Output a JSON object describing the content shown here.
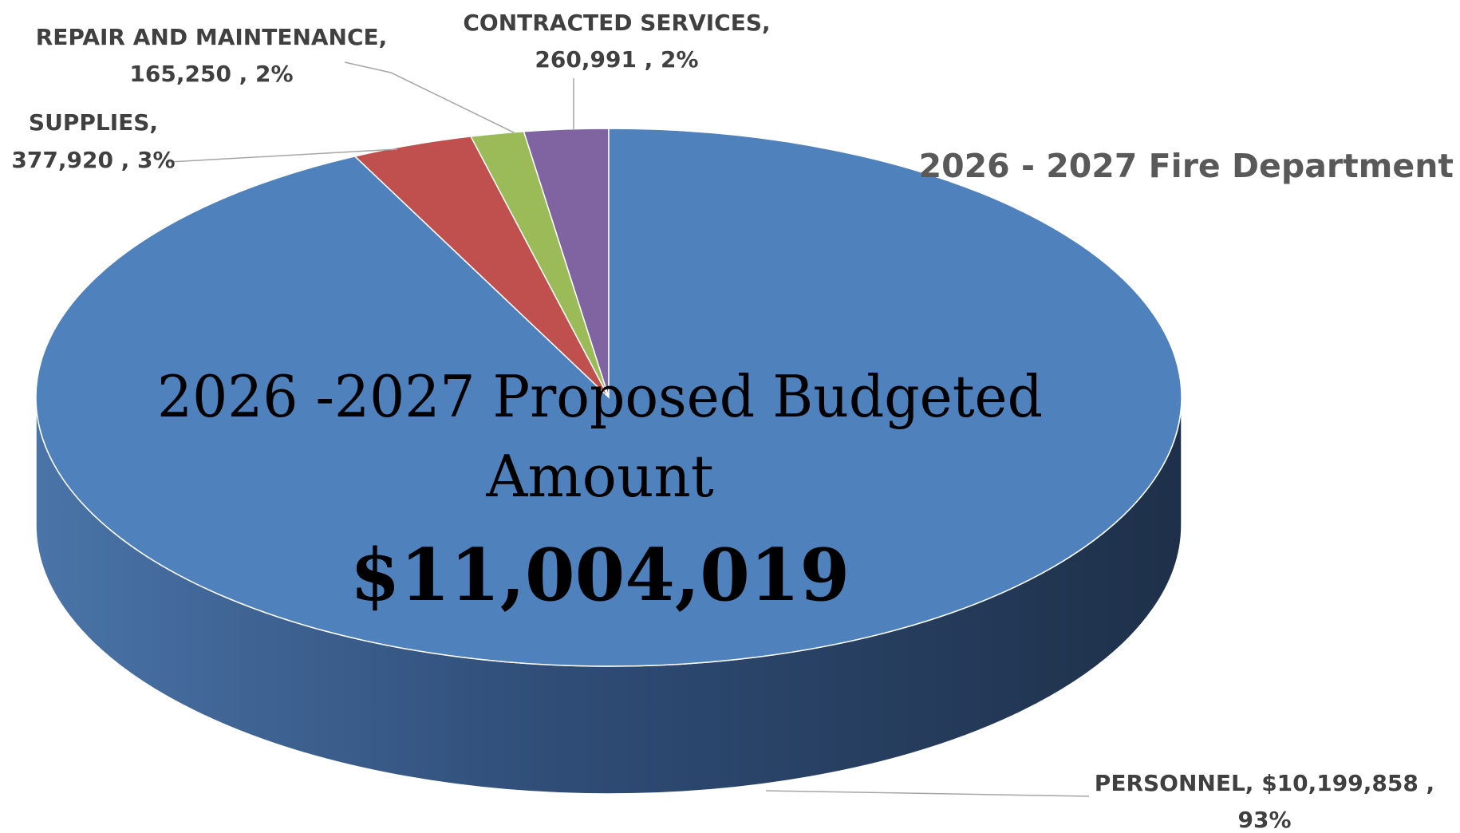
{
  "chart_data": {
    "type": "pie",
    "style": "3d",
    "title": "2026 - 2027 Fire Department",
    "center_line_1": "2026 -2027 Proposed Budgeted",
    "center_line_2": "Amount",
    "center_total": "$11,004,019",
    "slices": [
      {
        "name": "PERSONNEL",
        "value": 10199858,
        "percent": 93,
        "color": "#4F81BD",
        "label_line_1": "PERSONNEL,  $10,199,858 ,",
        "label_line_2": "93%"
      },
      {
        "name": "SUPPLIES",
        "value": 377920,
        "percent": 3,
        "color": "#C0504D",
        "label_line_1": "SUPPLIES,",
        "label_line_2": "377,920 , 3%"
      },
      {
        "name": "REPAIR AND MAINTENANCE",
        "value": 165250,
        "percent": 2,
        "color": "#9BBB59",
        "label_line_1": "REPAIR AND MAINTENANCE,",
        "label_line_2": "165,250 , 2%"
      },
      {
        "name": "CONTRACTED SERVICES",
        "value": 260991,
        "percent": 2,
        "color": "#8064A2",
        "label_line_1": "CONTRACTED SERVICES,",
        "label_line_2": "260,991 , 2%"
      }
    ]
  }
}
